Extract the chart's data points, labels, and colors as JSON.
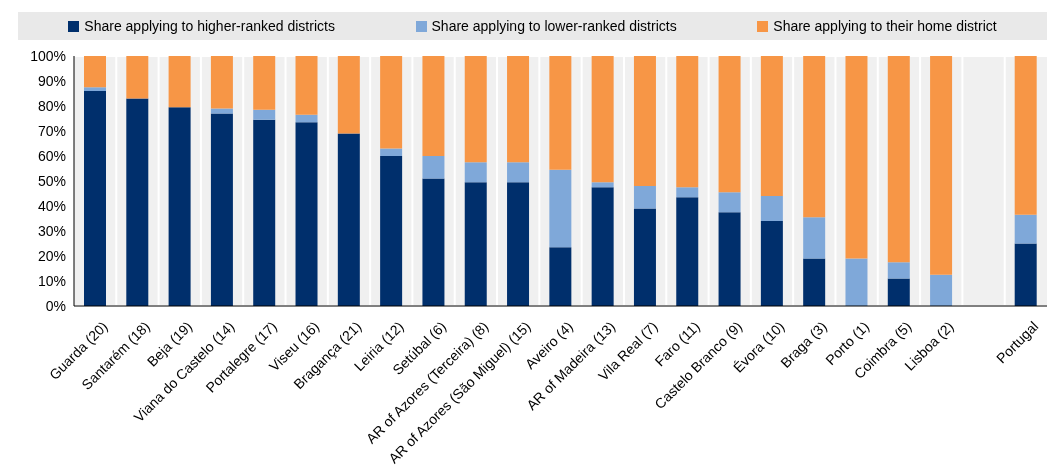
{
  "chart_data": {
    "type": "bar",
    "stacked": true,
    "legend": "top",
    "grid": true,
    "categories": [
      "Guarda (20)",
      "Santarém (18)",
      "Beja (19)",
      "Viana do Castelo (14)",
      "Portalegre (17)",
      "Viseu (16)",
      "Bragança (21)",
      "Leiria (12)",
      "Setúbal (6)",
      "AR of Azores (Terceira) (8)",
      "AR of Azores (São Miguel) (15)",
      "Aveiro (4)",
      "AR of Madeira (13)",
      "Vila Real (7)",
      "Faro (11)",
      "Castelo Branco (9)",
      "Évora (10)",
      "Braga (3)",
      "Porto (1)",
      "Coimbra (5)",
      "Lisboa (2)",
      null,
      "Portugal"
    ],
    "series": [
      {
        "name": "Share applying to higher-ranked districts",
        "color": "#002f6c",
        "values": [
          86,
          83,
          79.5,
          77,
          74.5,
          73.5,
          69,
          60,
          51,
          49.5,
          49.5,
          23.5,
          47.5,
          39,
          43.5,
          37.5,
          34,
          19,
          0,
          11,
          0,
          null,
          25
        ]
      },
      {
        "name": "Share applying to lower-ranked districts",
        "color": "#7fa8d9",
        "values": [
          1.5,
          0,
          0,
          2,
          4,
          3,
          0,
          3,
          9,
          8,
          8,
          31,
          2,
          9,
          4,
          8,
          10,
          16.5,
          19,
          6.5,
          12.5,
          null,
          11.5
        ]
      },
      {
        "name": "Share applying to their home district",
        "color": "#f79646",
        "values": [
          12.5,
          17,
          20.5,
          21,
          21.5,
          23.5,
          31,
          37,
          40,
          42.5,
          42.5,
          45.5,
          50.5,
          52,
          52.5,
          54.5,
          56,
          64.5,
          81,
          82.5,
          87.5,
          null,
          63.5
        ]
      }
    ],
    "ylim": [
      0,
      100
    ],
    "yticks": [
      {
        "value": 0,
        "label": "0%"
      },
      {
        "value": 10,
        "label": "10%"
      },
      {
        "value": 20,
        "label": "20%"
      },
      {
        "value": 30,
        "label": "30%"
      },
      {
        "value": 40,
        "label": "40%"
      },
      {
        "value": 50,
        "label": "50%"
      },
      {
        "value": 60,
        "label": "60%"
      },
      {
        "value": 70,
        "label": "70%"
      },
      {
        "value": 80,
        "label": "80%"
      },
      {
        "value": 90,
        "label": "90%"
      },
      {
        "value": 100,
        "label": "100%"
      }
    ]
  }
}
